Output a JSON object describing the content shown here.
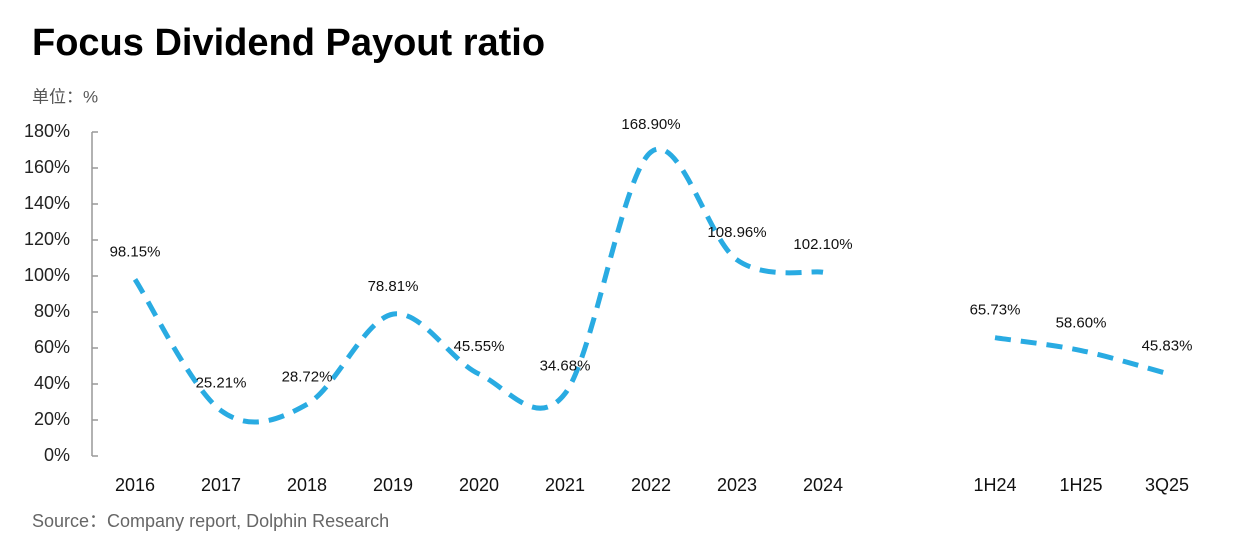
{
  "chart_data": {
    "type": "line",
    "title": "Focus Dividend Payout ratio",
    "unit_label": "单位：%",
    "source": "Source：Company report, Dolphin Research",
    "categories": [
      "2016",
      "2017",
      "2018",
      "2019",
      "2020",
      "2021",
      "2022",
      "2023",
      "2024",
      null,
      "1H24",
      "1H25",
      "3Q25"
    ],
    "series": [
      {
        "name": "Payout ratio",
        "color": "#29abe2",
        "values": [
          98.15,
          25.21,
          28.72,
          78.81,
          45.55,
          34.68,
          168.9,
          108.96,
          102.1,
          null,
          65.73,
          58.6,
          45.83
        ],
        "value_labels": [
          "98.15%",
          "25.21%",
          "28.72%",
          "78.81%",
          "45.55%",
          "34.68%",
          "168.90%",
          "108.96%",
          "102.10%",
          null,
          "65.73%",
          "58.60%",
          "45.83%"
        ]
      }
    ],
    "ylim": [
      0,
      180
    ],
    "yticks": [
      {
        "value": 0,
        "label": "0%"
      },
      {
        "value": 20,
        "label": "20%"
      },
      {
        "value": 40,
        "label": "40%"
      },
      {
        "value": 60,
        "label": "60%"
      },
      {
        "value": 80,
        "label": "80%"
      },
      {
        "value": 100,
        "label": "100%"
      },
      {
        "value": 120,
        "label": "120%"
      },
      {
        "value": 140,
        "label": "140%"
      },
      {
        "value": 160,
        "label": "160%"
      },
      {
        "value": 180,
        "label": "180%"
      }
    ],
    "grid": false,
    "smooth": true,
    "dashed": true
  }
}
